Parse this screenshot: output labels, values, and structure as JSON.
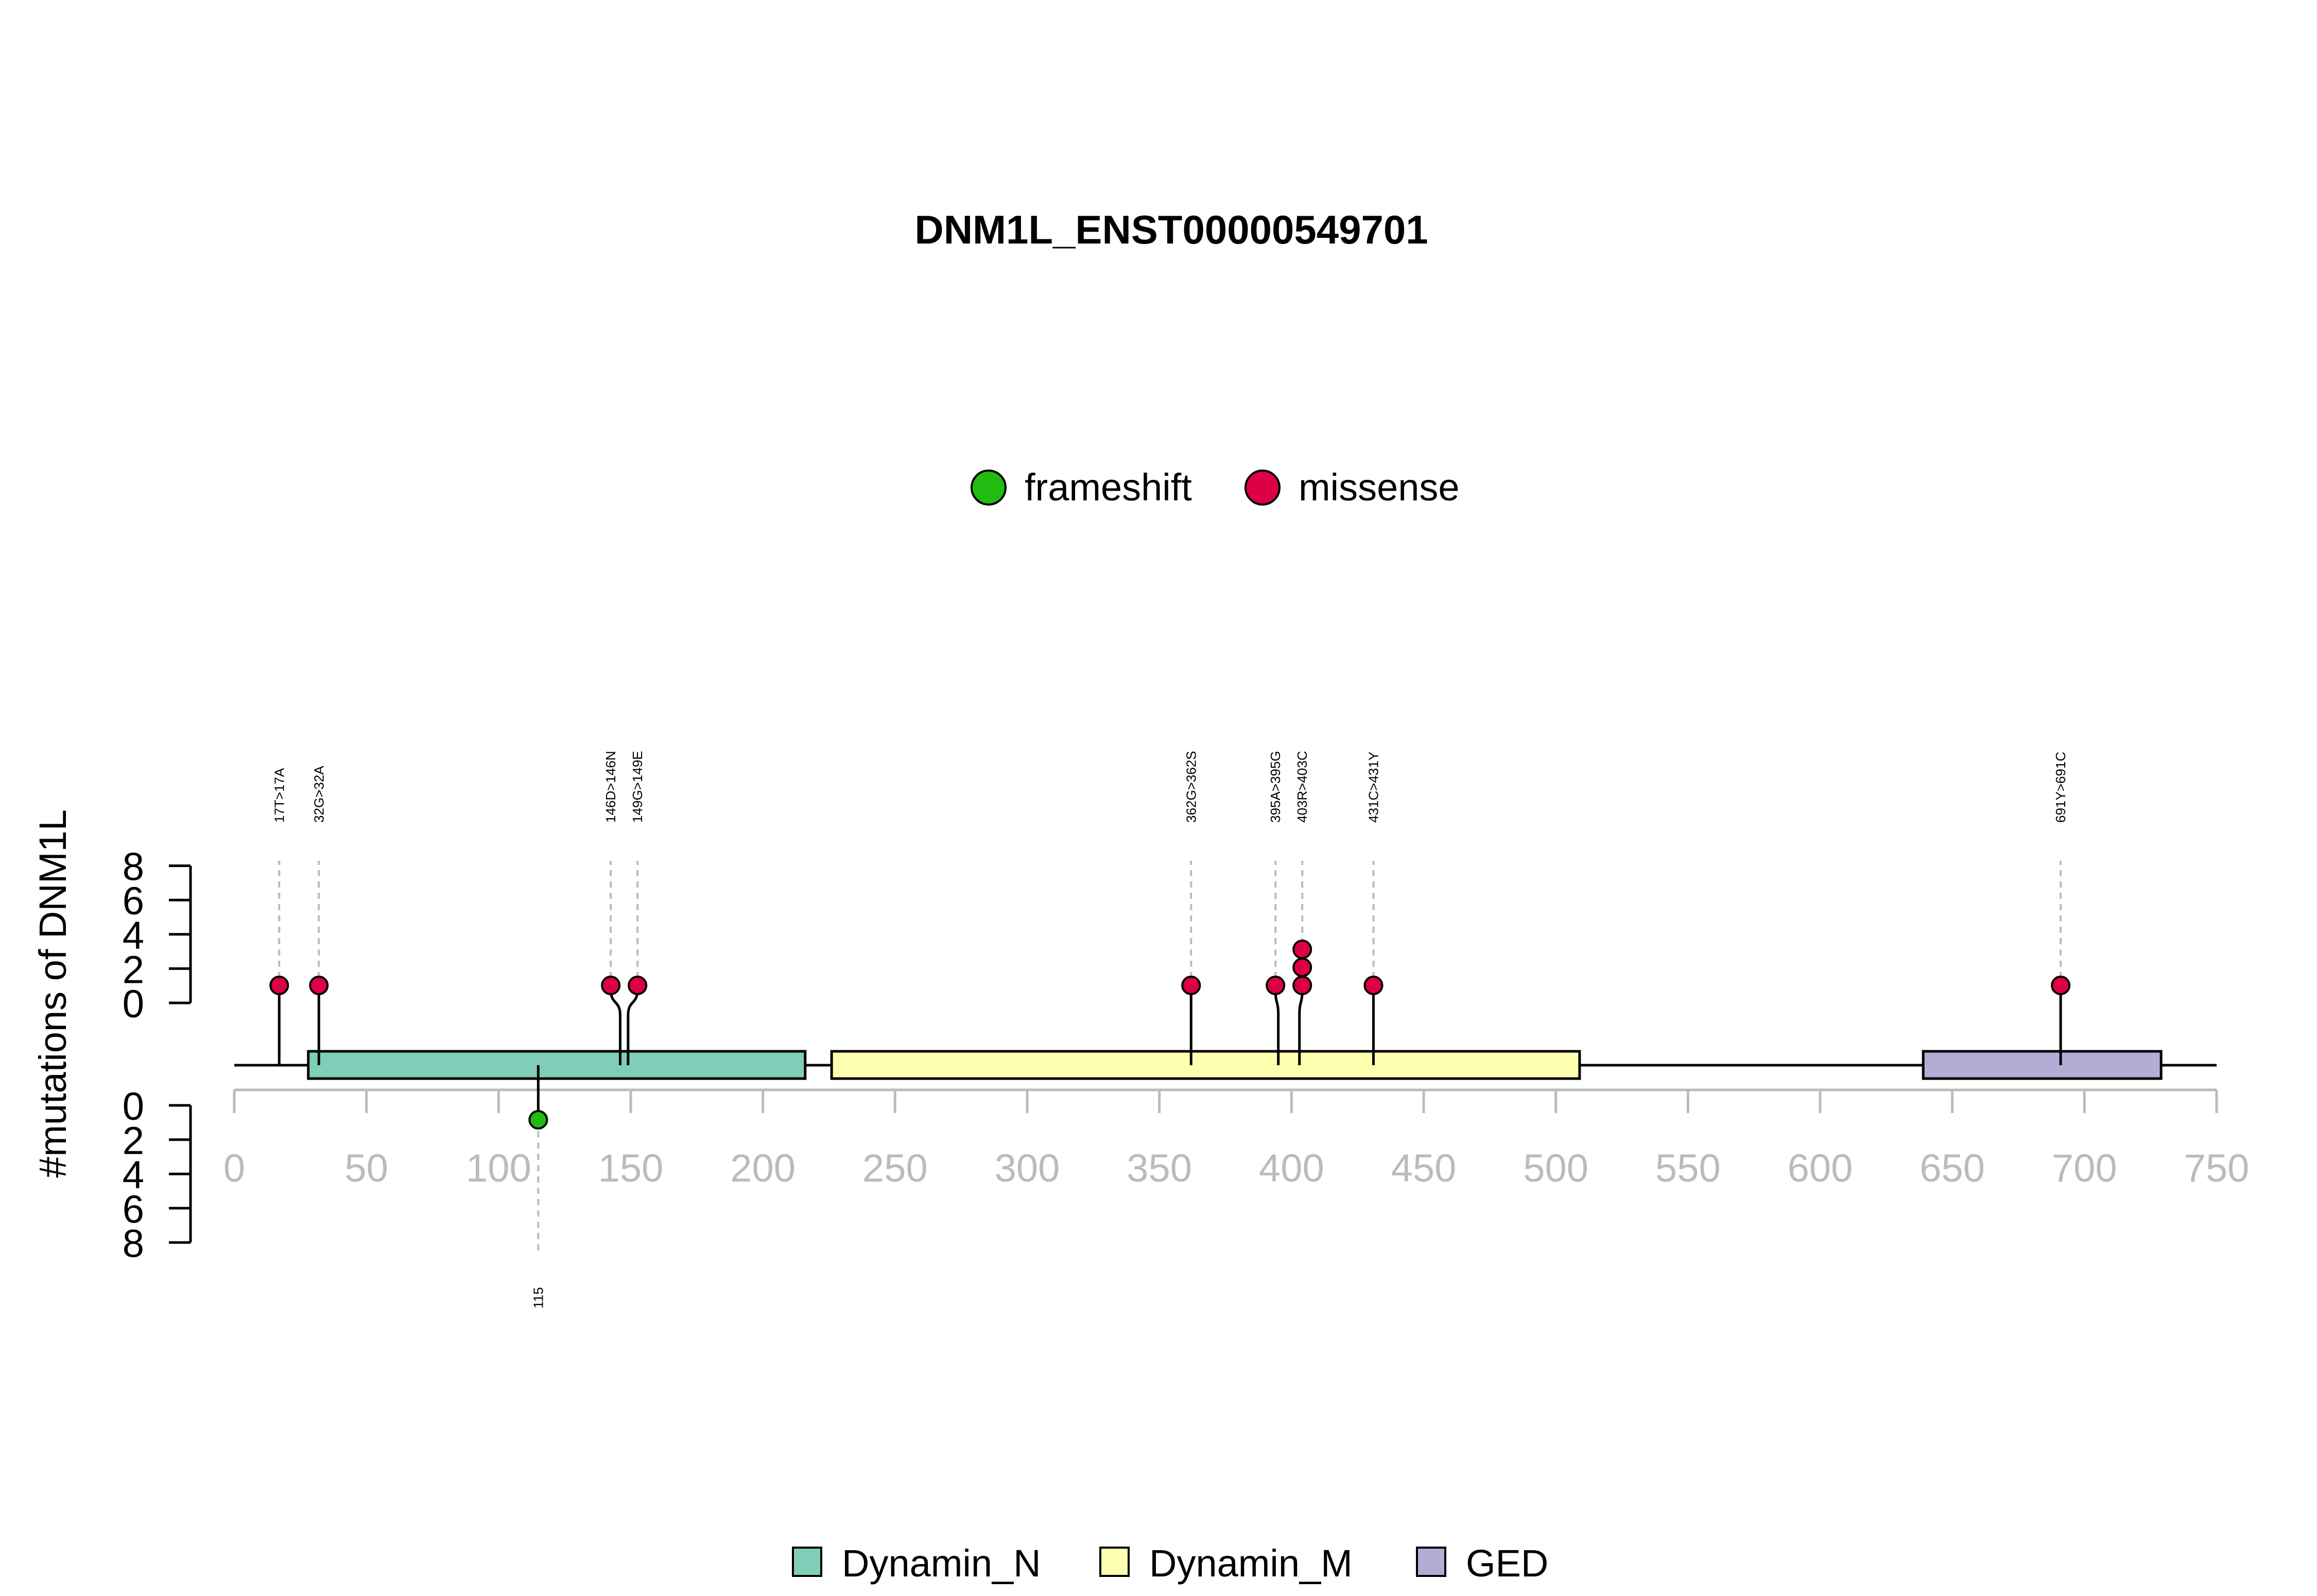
{
  "chart_data": {
    "type": "lollipop",
    "title": "DNM1L_ENST00000549701",
    "ylabel": "#mutations of DNM1L",
    "xlim": [
      0,
      750
    ],
    "x_ticks": [
      0,
      50,
      100,
      150,
      200,
      250,
      300,
      350,
      400,
      450,
      500,
      550,
      600,
      650,
      700,
      750
    ],
    "ylim_upper": [
      0,
      8
    ],
    "ylim_lower": [
      0,
      8
    ],
    "y_ticks_upper": [
      0,
      2,
      4,
      6,
      8
    ],
    "y_ticks_lower": [
      0,
      2,
      4,
      6,
      8
    ],
    "mutation_legend": [
      {
        "name": "frameshift",
        "color": "#22BB11"
      },
      {
        "name": "missense",
        "color": "#DD0044"
      }
    ],
    "domain_legend": [
      {
        "name": "Dynamin_N",
        "color": "#80CDB8"
      },
      {
        "name": "Dynamin_M",
        "color": "#FFFFB0"
      },
      {
        "name": "GED",
        "color": "#B3ADD5"
      }
    ],
    "domains": [
      {
        "name": "Dynamin_N",
        "start": 28,
        "end": 216,
        "color": "#80CDB8"
      },
      {
        "name": "Dynamin_M",
        "start": 226,
        "end": 509,
        "color": "#FFFFB0"
      },
      {
        "name": "GED",
        "start": 639,
        "end": 729,
        "color": "#B3ADD5"
      }
    ],
    "mutations_upper": [
      {
        "label": "17T>17A",
        "pos": 17,
        "count": 1,
        "type": "missense"
      },
      {
        "label": "32G>32A",
        "pos": 32,
        "count": 1,
        "type": "missense"
      },
      {
        "label": "146D>146N",
        "pos": 146,
        "count": 1,
        "type": "missense"
      },
      {
        "label": "149G>149E",
        "pos": 149,
        "count": 1,
        "type": "missense"
      },
      {
        "label": "362G>362S",
        "pos": 362,
        "count": 1,
        "type": "missense"
      },
      {
        "label": "395A>395G",
        "pos": 395,
        "count": 1,
        "type": "missense"
      },
      {
        "label": "403R>403C",
        "pos": 403,
        "count": 3,
        "type": "missense"
      },
      {
        "label": "431C>431Y",
        "pos": 431,
        "count": 1,
        "type": "missense"
      },
      {
        "label": "691Y>691C",
        "pos": 691,
        "count": 1,
        "type": "missense"
      }
    ],
    "mutations_lower": [
      {
        "label": "115",
        "pos": 115,
        "count": 1,
        "type": "frameshift"
      }
    ]
  }
}
